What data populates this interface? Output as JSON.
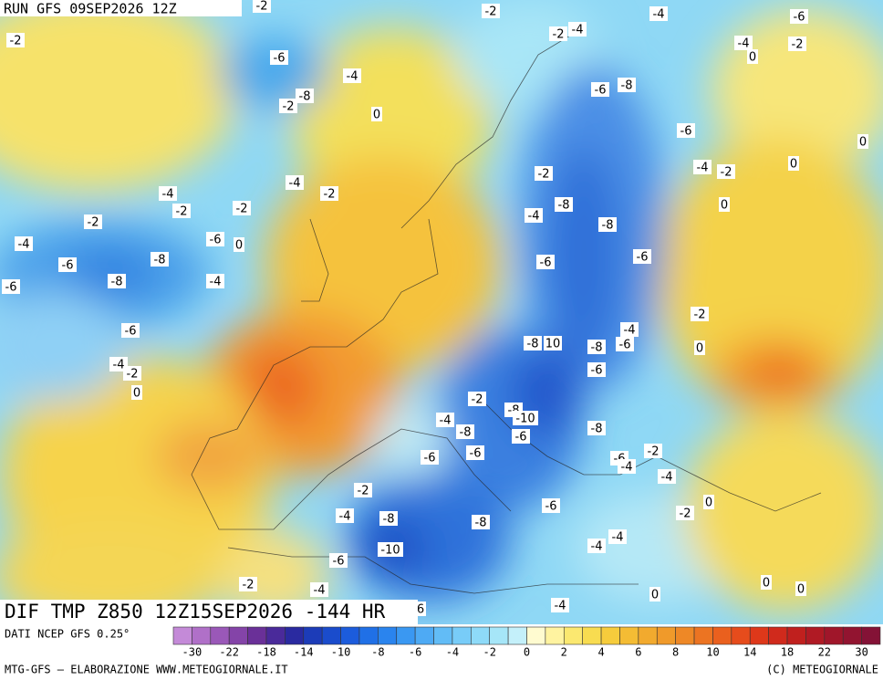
{
  "header": {
    "run": "RUN GFS 09SEP2026 12Z"
  },
  "map_title": "DIF TMP Z850 12Z15SEP2026 -144 HR",
  "source": "DATI NCEP GFS 0.25°",
  "footer": {
    "left": "MTG-GFS — ELABORAZIONE WWW.METEOGIORNALE.IT",
    "right": "(C) METEOGIORNALE"
  },
  "colorbar": {
    "ticks": [
      -30,
      -22,
      -18,
      -14,
      -10,
      -8,
      -6,
      -4,
      -2,
      0,
      2,
      4,
      6,
      8,
      10,
      14,
      18,
      22,
      30
    ],
    "colors": [
      "#c48ad8",
      "#b070c8",
      "#9a58b8",
      "#8444a8",
      "#6a3098",
      "#4a2a9a",
      "#2a2aa0",
      "#1c3cb8",
      "#1a4ccc",
      "#1c5cdc",
      "#2070e6",
      "#2a84ee",
      "#3a98f2",
      "#4eaaf4",
      "#62bcf6",
      "#78ccf8",
      "#8edaf8",
      "#a6e6f8",
      "#c4f0fa",
      "#fffbd0",
      "#fff3a0",
      "#fbe870",
      "#f8dc50",
      "#f6cc3c",
      "#f4bc34",
      "#f2aa2e",
      "#f09a2a",
      "#ee8826",
      "#ec7422",
      "#ea601e",
      "#e64c1c",
      "#de381a",
      "#d02a1c",
      "#c0201e",
      "#b01a24",
      "#a0162a",
      "#921430",
      "#841236"
    ]
  },
  "contour_labels": [
    -2,
    -2,
    -4,
    -6,
    -2,
    -2,
    -4,
    -4,
    -2,
    0,
    -6,
    -4,
    -6,
    -8,
    -8,
    -2,
    0,
    -6,
    0,
    -4,
    -2,
    0,
    -2,
    -4,
    -4,
    -2,
    -2,
    -2,
    -4,
    -8,
    0,
    -2,
    -8,
    -4,
    -6,
    0,
    -8,
    -6,
    -6,
    -6,
    -8,
    -4,
    -6,
    -2,
    -6,
    -4,
    -8,
    10,
    -8,
    -6,
    0,
    -4,
    -2,
    -6,
    0,
    -2,
    -8,
    -10,
    -4,
    -8,
    -6,
    -8,
    -6,
    -6,
    -6,
    -4,
    -2,
    -4,
    -2,
    0,
    -6,
    -2,
    -4,
    -8,
    -8,
    -4,
    -4,
    -10,
    -6,
    -2,
    -4,
    0,
    0,
    0,
    -4,
    6
  ]
}
